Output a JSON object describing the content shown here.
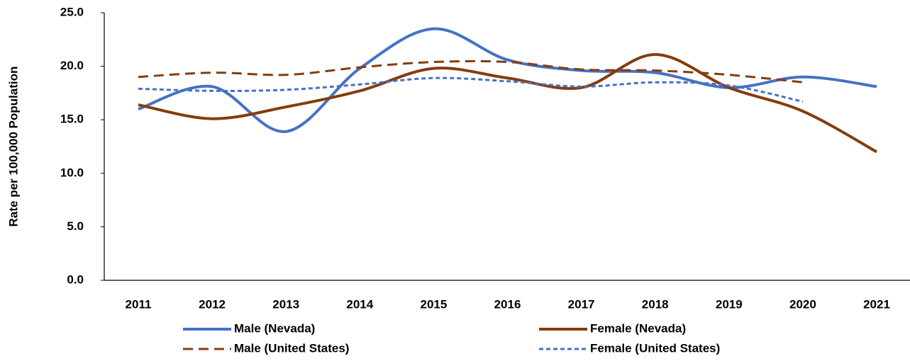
{
  "chart_data": {
    "type": "line",
    "y_label": "Rate per 100,000 Population",
    "categories": [
      "2011",
      "2012",
      "2013",
      "2014",
      "2015",
      "2016",
      "2017",
      "2018",
      "2019",
      "2020",
      "2021"
    ],
    "series": [
      {
        "name": "Male (Nevada)",
        "color": "#4472c4",
        "dash": "solid",
        "values": [
          16.0,
          18.1,
          13.9,
          19.8,
          23.5,
          20.6,
          19.6,
          19.4,
          18.0,
          19.0,
          18.1
        ]
      },
      {
        "name": "Female (Nevada)",
        "color": "#843c0c",
        "dash": "solid",
        "values": [
          16.4,
          15.1,
          16.2,
          17.7,
          19.8,
          18.9,
          18.0,
          21.1,
          18.0,
          15.8,
          12.0
        ]
      },
      {
        "name": "Male (United States)",
        "color": "#843c0c",
        "dash": "dashed",
        "values": [
          19.0,
          19.4,
          19.2,
          19.9,
          20.4,
          20.4,
          19.7,
          19.6,
          19.2,
          18.5,
          null
        ]
      },
      {
        "name": "Female (United States)",
        "color": "#4472c4",
        "dash": "dotted",
        "values": [
          17.9,
          17.7,
          17.8,
          18.3,
          18.9,
          18.6,
          18.1,
          18.5,
          18.2,
          16.7,
          null
        ]
      }
    ],
    "ylim": [
      0,
      25
    ],
    "yticks": [
      {
        "value": 0,
        "label": "0.0"
      },
      {
        "value": 5,
        "label": "5.0"
      },
      {
        "value": 10,
        "label": "10.0"
      },
      {
        "value": 15,
        "label": "15.0"
      },
      {
        "value": 20,
        "label": "20.0"
      },
      {
        "value": 25,
        "label": "25.0"
      }
    ],
    "smooth": true,
    "grid": false,
    "legend": "bottom"
  }
}
